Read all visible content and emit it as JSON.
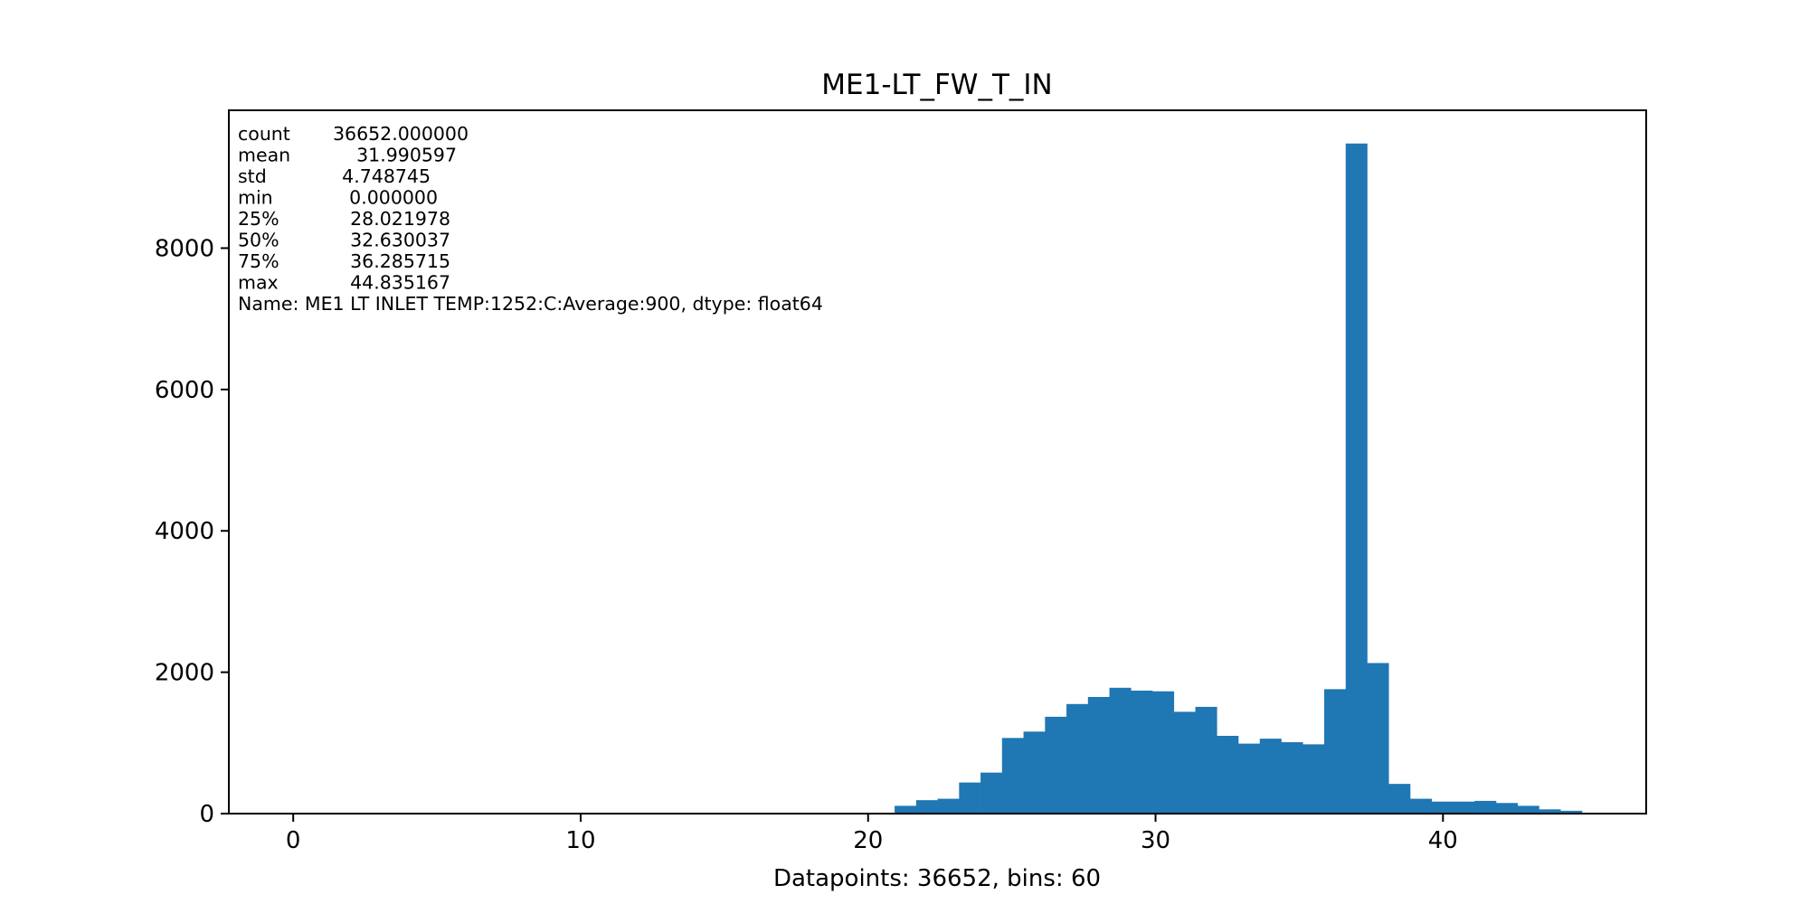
{
  "chart_data": {
    "type": "bar",
    "title": "ME1-LT_FW_T_IN",
    "xlabel": "Datapoints: 36652, bins: 60",
    "ylabel": "",
    "xlim": [
      -2.24,
      47.07
    ],
    "ylim": [
      0,
      9950
    ],
    "xticks": [
      0,
      10,
      20,
      30,
      40
    ],
    "yticks": [
      0,
      2000,
      4000,
      6000,
      8000
    ],
    "grid": false,
    "bar_color": "#1f77b4",
    "bin_start": 0.0,
    "bin_width": 0.7472528,
    "counts": [
      3,
      0,
      0,
      0,
      0,
      0,
      0,
      0,
      0,
      0,
      0,
      0,
      0,
      0,
      0,
      0,
      0,
      0,
      0,
      0,
      0,
      0,
      0,
      0,
      0,
      0,
      0,
      0,
      110,
      190,
      210,
      440,
      580,
      1070,
      1160,
      1370,
      1550,
      1650,
      1780,
      1740,
      1730,
      1440,
      1510,
      1100,
      990,
      1060,
      1010,
      980,
      1760,
      9480,
      2130,
      420,
      210,
      170,
      170,
      180,
      150,
      110,
      60,
      40
    ],
    "stats": {
      "rows": [
        {
          "key": "count",
          "value": "36652.000000"
        },
        {
          "key": "mean",
          "value": "31.990597"
        },
        {
          "key": "std",
          "value": "4.748745"
        },
        {
          "key": "min",
          "value": "0.000000"
        },
        {
          "key": "25%",
          "value": "28.021978"
        },
        {
          "key": "50%",
          "value": "32.630037"
        },
        {
          "key": "75%",
          "value": "36.285715"
        },
        {
          "key": "max",
          "value": "44.835167"
        }
      ],
      "footer": "Name: ME1 LT INLET TEMP:1252:C:Average:900, dtype: float64"
    }
  }
}
